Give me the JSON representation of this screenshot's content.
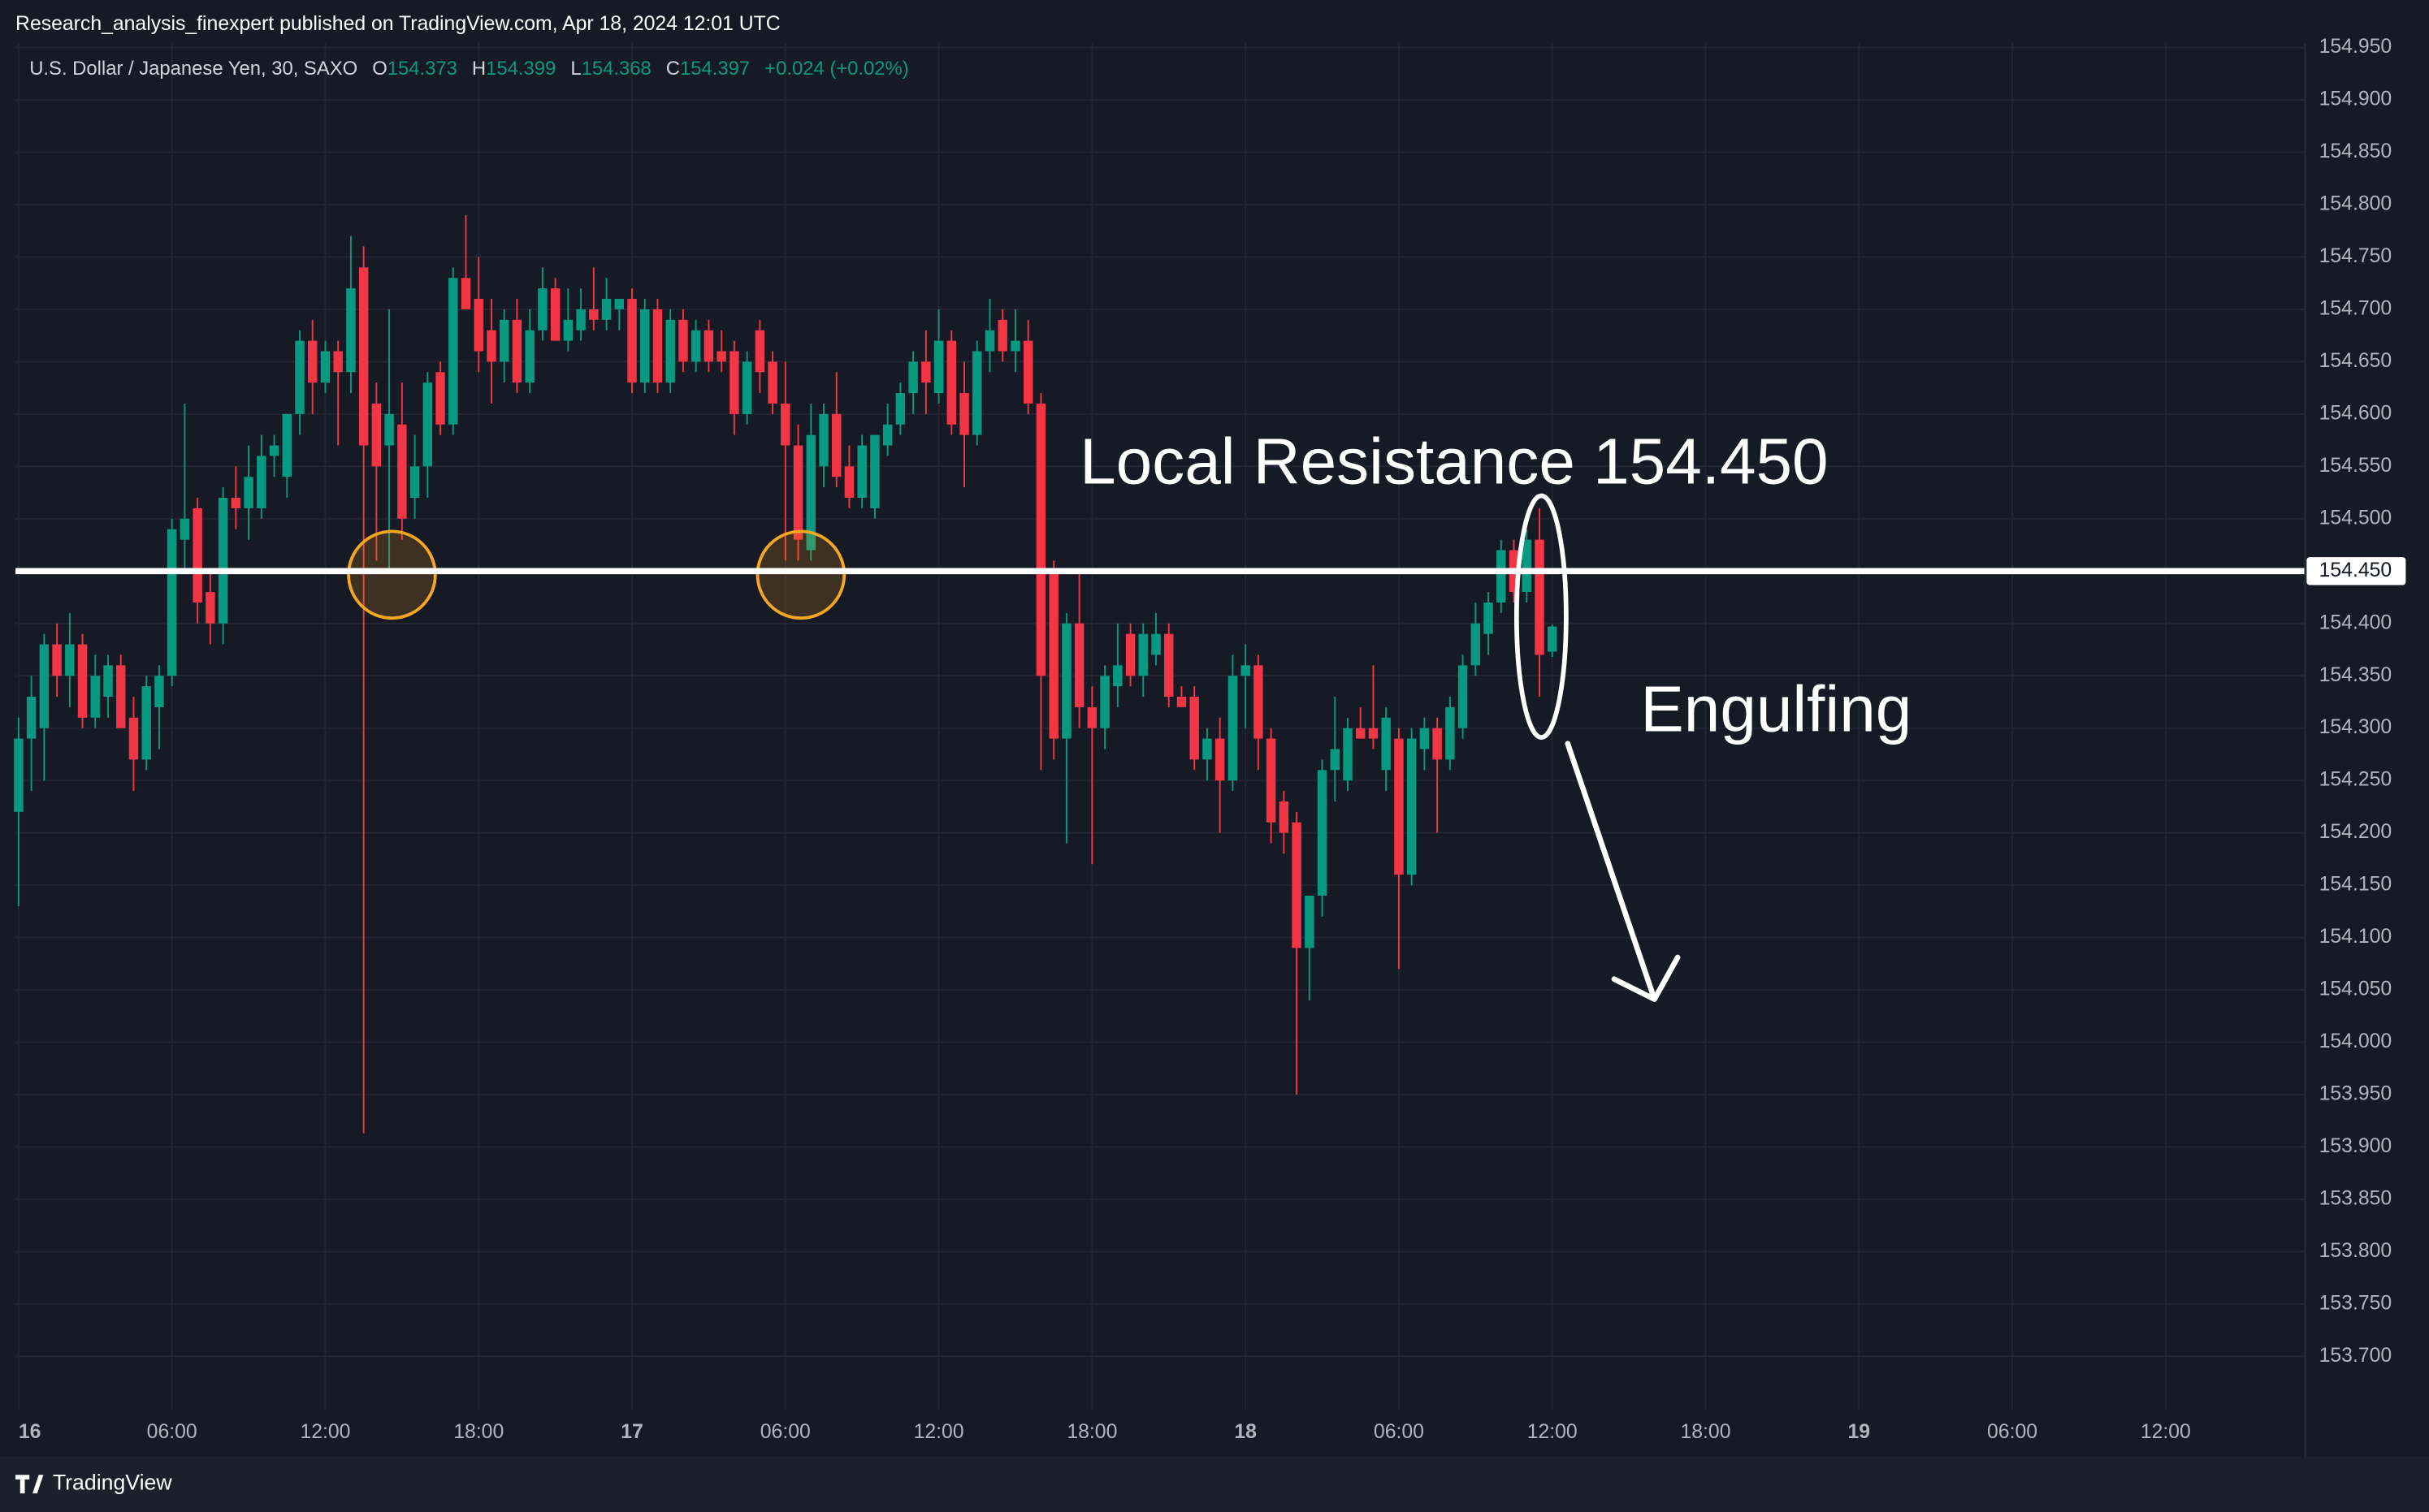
{
  "chart_data": {
    "type": "candlestick",
    "header": "Research_analysis_finexpert published on TradingView.com, Apr 18, 2024 12:01 UTC",
    "symbol": "U.S. Dollar / Japanese Yen, 30, SAXO",
    "legend_labels": [
      "O",
      "H",
      "L",
      "C"
    ],
    "legend_values": [
      154.373,
      154.399,
      154.368,
      154.397
    ],
    "change": "+0.024 (+0.02%)",
    "colors": {
      "up": "#089981",
      "down": "#f23645"
    },
    "grid": true,
    "ylim": [
      153.649,
      154.954
    ],
    "yticks": [
      {
        "value": 153.7,
        "label": "153.700"
      },
      {
        "value": 153.75,
        "label": "153.750"
      },
      {
        "value": 153.8,
        "label": "153.800"
      },
      {
        "value": 153.85,
        "label": "153.850"
      },
      {
        "value": 153.9,
        "label": "153.900"
      },
      {
        "value": 153.95,
        "label": "153.950"
      },
      {
        "value": 154.0,
        "label": "154.000"
      },
      {
        "value": 154.05,
        "label": "154.050"
      },
      {
        "value": 154.1,
        "label": "154.100"
      },
      {
        "value": 154.15,
        "label": "154.150"
      },
      {
        "value": 154.2,
        "label": "154.200"
      },
      {
        "value": 154.25,
        "label": "154.250"
      },
      {
        "value": 154.3,
        "label": "154.300"
      },
      {
        "value": 154.35,
        "label": "154.350"
      },
      {
        "value": 154.4,
        "label": "154.400"
      },
      {
        "value": 154.45,
        "label": "154.450"
      },
      {
        "value": 154.5,
        "label": "154.500"
      },
      {
        "value": 154.55,
        "label": "154.550"
      },
      {
        "value": 154.6,
        "label": "154.600"
      },
      {
        "value": 154.65,
        "label": "154.650"
      },
      {
        "value": 154.7,
        "label": "154.700"
      },
      {
        "value": 154.75,
        "label": "154.750"
      },
      {
        "value": 154.8,
        "label": "154.800"
      },
      {
        "value": 154.85,
        "label": "154.850"
      },
      {
        "value": 154.9,
        "label": "154.900"
      },
      {
        "value": 154.95,
        "label": "154.950"
      }
    ],
    "resistance": {
      "value": 154.45,
      "label": "154.450"
    },
    "annotations": [
      "Local Resistance 154.450",
      "Engulfing"
    ],
    "footer": "TradingView",
    "categories": [
      "16",
      null,
      null,
      null,
      null,
      null,
      null,
      null,
      null,
      null,
      null,
      null,
      "06:00",
      null,
      null,
      null,
      null,
      null,
      null,
      null,
      null,
      null,
      null,
      null,
      "12:00",
      null,
      null,
      null,
      null,
      null,
      null,
      null,
      null,
      null,
      null,
      null,
      "18:00",
      null,
      null,
      null,
      null,
      null,
      null,
      null,
      null,
      null,
      null,
      null,
      "17",
      null,
      null,
      null,
      null,
      null,
      null,
      null,
      null,
      null,
      null,
      null,
      "06:00",
      null,
      null,
      null,
      null,
      null,
      null,
      null,
      null,
      null,
      null,
      null,
      "12:00",
      null,
      null,
      null,
      null,
      null,
      null,
      null,
      null,
      null,
      null,
      null,
      "18:00",
      null,
      null,
      null,
      null,
      null,
      null,
      null,
      null,
      null,
      null,
      null,
      "18",
      null,
      null,
      null,
      null,
      null,
      null,
      null,
      null,
      null,
      null,
      null,
      "06:00",
      null,
      null,
      null,
      null,
      null,
      null,
      null,
      null,
      null,
      null,
      null,
      "12:00",
      null,
      null,
      null,
      null,
      null,
      null,
      null,
      null,
      null,
      null,
      null,
      "18:00",
      null,
      null,
      null,
      null,
      null,
      null,
      null,
      null,
      null,
      null,
      null,
      "19",
      null,
      null,
      null,
      null,
      null,
      null,
      null,
      null,
      null,
      null,
      null,
      "06:00",
      null,
      null,
      null,
      null,
      null,
      null,
      null,
      null,
      null,
      null,
      null,
      "12:00"
    ],
    "ohlc": [
      [
        154.22,
        154.31,
        154.13,
        154.29
      ],
      [
        154.29,
        154.35,
        154.24,
        154.33
      ],
      [
        154.3,
        154.39,
        154.25,
        154.38
      ],
      [
        154.38,
        154.4,
        154.33,
        154.35
      ],
      [
        154.35,
        154.41,
        154.32,
        154.38
      ],
      [
        154.38,
        154.39,
        154.3,
        154.31
      ],
      [
        154.31,
        154.37,
        154.3,
        154.35
      ],
      [
        154.33,
        154.37,
        154.31,
        154.36
      ],
      [
        154.36,
        154.37,
        154.3,
        154.3
      ],
      [
        154.31,
        154.33,
        154.24,
        154.27
      ],
      [
        154.27,
        154.35,
        154.26,
        154.34
      ],
      [
        154.32,
        154.36,
        154.28,
        154.35
      ],
      [
        154.35,
        154.5,
        154.34,
        154.49
      ],
      [
        154.48,
        154.61,
        154.45,
        154.5
      ],
      [
        154.51,
        154.52,
        154.4,
        154.42
      ],
      [
        154.43,
        154.45,
        154.38,
        154.4
      ],
      [
        154.4,
        154.53,
        154.38,
        154.52
      ],
      [
        154.52,
        154.55,
        154.49,
        154.51
      ],
      [
        154.51,
        154.57,
        154.48,
        154.54
      ],
      [
        154.51,
        154.58,
        154.5,
        154.56
      ],
      [
        154.56,
        154.58,
        154.54,
        154.57
      ],
      [
        154.54,
        154.6,
        154.52,
        154.6
      ],
      [
        154.6,
        154.68,
        154.58,
        154.67
      ],
      [
        154.67,
        154.69,
        154.6,
        154.63
      ],
      [
        154.63,
        154.67,
        154.62,
        154.66
      ],
      [
        154.66,
        154.67,
        154.57,
        154.64
      ],
      [
        154.64,
        154.77,
        154.62,
        154.72
      ],
      [
        154.74,
        154.76,
        153.913,
        154.57
      ],
      [
        154.61,
        154.63,
        154.46,
        154.55
      ],
      [
        154.57,
        154.7,
        154.45,
        154.6
      ],
      [
        154.59,
        154.63,
        154.48,
        154.5
      ],
      [
        154.52,
        154.58,
        154.5,
        154.55
      ],
      [
        154.55,
        154.64,
        154.52,
        154.63
      ],
      [
        154.64,
        154.65,
        154.58,
        154.59
      ],
      [
        154.59,
        154.74,
        154.58,
        154.73
      ],
      [
        154.73,
        154.79,
        154.7,
        154.7
      ],
      [
        154.71,
        154.75,
        154.64,
        154.66
      ],
      [
        154.68,
        154.71,
        154.61,
        154.65
      ],
      [
        154.65,
        154.7,
        154.63,
        154.69
      ],
      [
        154.69,
        154.71,
        154.62,
        154.63
      ],
      [
        154.63,
        154.7,
        154.62,
        154.68
      ],
      [
        154.68,
        154.74,
        154.67,
        154.72
      ],
      [
        154.72,
        154.73,
        154.67,
        154.67
      ],
      [
        154.67,
        154.72,
        154.66,
        154.69
      ],
      [
        154.68,
        154.72,
        154.67,
        154.7
      ],
      [
        154.7,
        154.74,
        154.68,
        154.69
      ],
      [
        154.69,
        154.73,
        154.68,
        154.71
      ],
      [
        154.7,
        154.71,
        154.68,
        154.71
      ],
      [
        154.71,
        154.72,
        154.62,
        154.63
      ],
      [
        154.63,
        154.71,
        154.62,
        154.7
      ],
      [
        154.7,
        154.71,
        154.62,
        154.63
      ],
      [
        154.63,
        154.7,
        154.62,
        154.69
      ],
      [
        154.69,
        154.7,
        154.64,
        154.65
      ],
      [
        154.65,
        154.69,
        154.64,
        154.68
      ],
      [
        154.68,
        154.69,
        154.64,
        154.65
      ],
      [
        154.66,
        154.68,
        154.64,
        154.65
      ],
      [
        154.66,
        154.67,
        154.58,
        154.6
      ],
      [
        154.6,
        154.66,
        154.59,
        154.65
      ],
      [
        154.68,
        154.69,
        154.62,
        154.64
      ],
      [
        154.65,
        154.66,
        154.6,
        154.61
      ],
      [
        154.61,
        154.65,
        154.46,
        154.57
      ],
      [
        154.57,
        154.59,
        154.46,
        154.48
      ],
      [
        154.47,
        154.61,
        154.46,
        154.58
      ],
      [
        154.55,
        154.61,
        154.53,
        154.6
      ],
      [
        154.6,
        154.64,
        154.53,
        154.54
      ],
      [
        154.55,
        154.57,
        154.51,
        154.52
      ],
      [
        154.52,
        154.58,
        154.51,
        154.57
      ],
      [
        154.51,
        154.58,
        154.5,
        154.58
      ],
      [
        154.57,
        154.61,
        154.56,
        154.59
      ],
      [
        154.59,
        154.63,
        154.58,
        154.62
      ],
      [
        154.62,
        154.66,
        154.6,
        154.65
      ],
      [
        154.65,
        154.68,
        154.6,
        154.63
      ],
      [
        154.62,
        154.7,
        154.61,
        154.67
      ],
      [
        154.67,
        154.68,
        154.58,
        154.59
      ],
      [
        154.62,
        154.65,
        154.53,
        154.58
      ],
      [
        154.58,
        154.67,
        154.57,
        154.66
      ],
      [
        154.66,
        154.71,
        154.64,
        154.68
      ],
      [
        154.69,
        154.7,
        154.65,
        154.66
      ],
      [
        154.66,
        154.7,
        154.64,
        154.67
      ],
      [
        154.67,
        154.69,
        154.6,
        154.61
      ],
      [
        154.61,
        154.62,
        154.26,
        154.35
      ],
      [
        154.45,
        154.46,
        154.27,
        154.29
      ],
      [
        154.29,
        154.41,
        154.19,
        154.4
      ],
      [
        154.4,
        154.45,
        154.3,
        154.32
      ],
      [
        154.32,
        154.34,
        154.17,
        154.3
      ],
      [
        154.3,
        154.36,
        154.28,
        154.35
      ],
      [
        154.34,
        154.4,
        154.32,
        154.36
      ],
      [
        154.39,
        154.4,
        154.34,
        154.35
      ],
      [
        154.35,
        154.4,
        154.33,
        154.39
      ],
      [
        154.37,
        154.41,
        154.36,
        154.39
      ],
      [
        154.39,
        154.4,
        154.32,
        154.33
      ],
      [
        154.33,
        154.34,
        154.32,
        154.32
      ],
      [
        154.33,
        154.34,
        154.26,
        154.27
      ],
      [
        154.27,
        154.3,
        154.25,
        154.29
      ],
      [
        154.29,
        154.31,
        154.2,
        154.25
      ],
      [
        154.25,
        154.37,
        154.24,
        154.35
      ],
      [
        154.35,
        154.38,
        154.3,
        154.36
      ],
      [
        154.36,
        154.37,
        154.26,
        154.29
      ],
      [
        154.29,
        154.3,
        154.19,
        154.21
      ],
      [
        154.23,
        154.24,
        154.18,
        154.2
      ],
      [
        154.21,
        154.22,
        153.95,
        154.09
      ],
      [
        154.09,
        154.14,
        154.04,
        154.14
      ],
      [
        154.14,
        154.27,
        154.12,
        154.26
      ],
      [
        154.26,
        154.33,
        154.23,
        154.28
      ],
      [
        154.25,
        154.31,
        154.24,
        154.3
      ],
      [
        154.3,
        154.32,
        154.29,
        154.29
      ],
      [
        154.3,
        154.36,
        154.28,
        154.29
      ],
      [
        154.26,
        154.32,
        154.24,
        154.31
      ],
      [
        154.29,
        154.3,
        154.07,
        154.16
      ],
      [
        154.16,
        154.3,
        154.15,
        154.29
      ],
      [
        154.28,
        154.31,
        154.26,
        154.3
      ],
      [
        154.3,
        154.31,
        154.2,
        154.27
      ],
      [
        154.27,
        154.33,
        154.26,
        154.32
      ],
      [
        154.3,
        154.37,
        154.29,
        154.36
      ],
      [
        154.36,
        154.42,
        154.35,
        154.4
      ],
      [
        154.39,
        154.43,
        154.37,
        154.42
      ],
      [
        154.42,
        154.48,
        154.41,
        154.47
      ],
      [
        154.47,
        154.48,
        154.42,
        154.43
      ],
      [
        154.43,
        154.49,
        154.42,
        154.48
      ],
      [
        154.48,
        154.51,
        154.33,
        154.37
      ],
      [
        154.373,
        154.399,
        154.368,
        154.397
      ],
      null,
      null,
      null,
      null,
      null,
      null,
      null,
      null,
      null,
      null,
      null,
      null,
      null,
      null,
      null,
      null,
      null,
      null,
      null,
      null,
      null,
      null,
      null,
      null,
      null,
      null,
      null,
      null,
      null,
      null,
      null,
      null,
      null,
      null,
      null,
      null,
      null,
      null,
      null,
      null,
      null,
      null,
      null,
      null,
      null,
      null,
      null,
      null
    ]
  }
}
